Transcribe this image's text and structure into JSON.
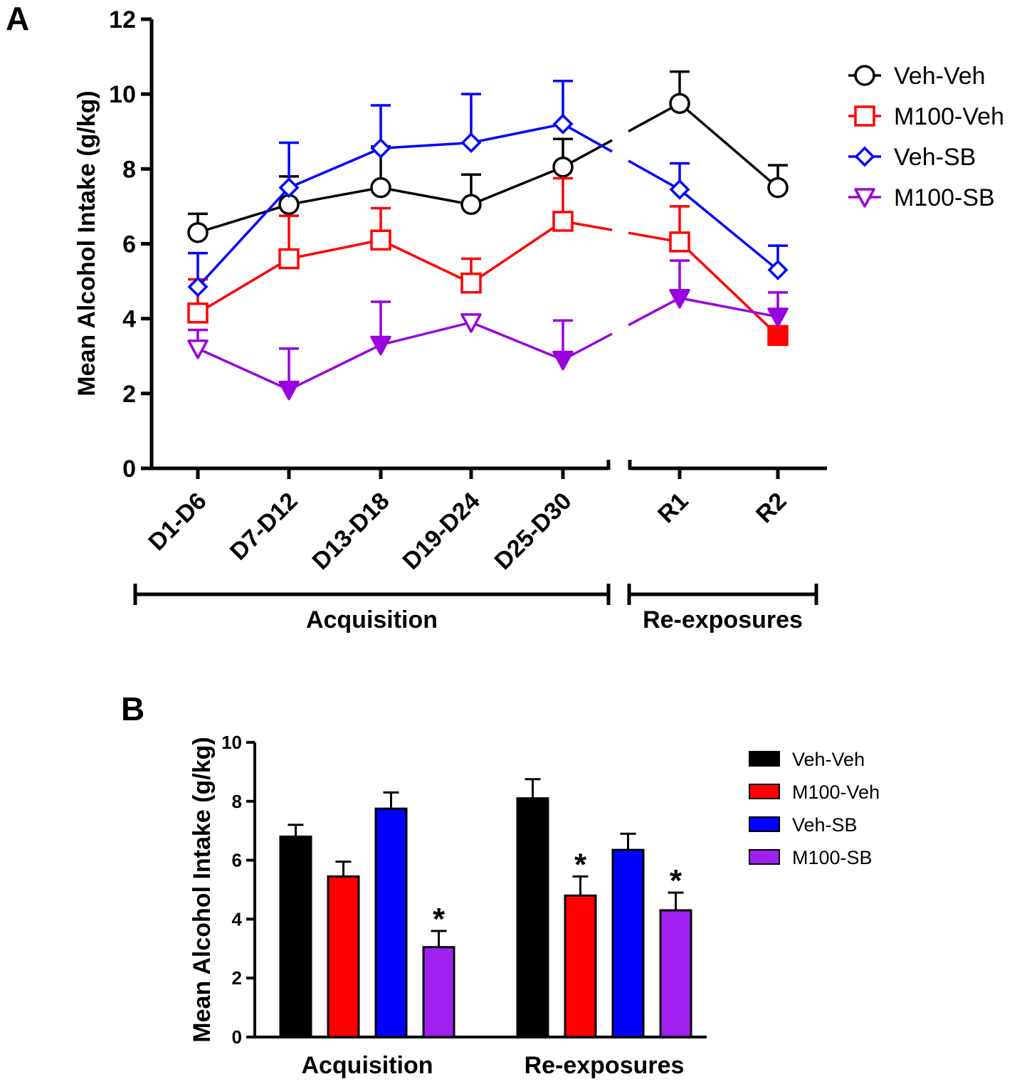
{
  "panels": {
    "a_label": "A",
    "b_label": "B"
  },
  "chart_data": [
    {
      "type": "line",
      "panel": "A",
      "ylabel": "Mean Alcohol Intake (g/kg)",
      "ylim": [
        0,
        12
      ],
      "yticks": [
        0,
        2,
        4,
        6,
        8,
        10,
        12
      ],
      "categories": [
        "D1-D6",
        "D7-D12",
        "D13-D18",
        "D19-D24",
        "D25-D30",
        "R1",
        "R2"
      ],
      "groups": [
        {
          "label": "Acquisition",
          "span": "D1-D6 to D25-D30"
        },
        {
          "label": "Re-exposures",
          "span": "R1 to R2"
        }
      ],
      "axis_break": "between D25-D30 and R1",
      "series": [
        {
          "name": "Veh-Veh",
          "color": "#000000",
          "marker": "circle",
          "values": [
            6.3,
            7.05,
            7.5,
            7.05,
            8.05,
            9.75,
            7.5
          ],
          "errors": [
            0.5,
            0.75,
            1.1,
            0.8,
            0.75,
            0.85,
            0.6
          ],
          "filled": [
            false,
            false,
            false,
            false,
            false,
            false,
            false
          ]
        },
        {
          "name": "M100-Veh",
          "color": "#ff0000",
          "marker": "square",
          "values": [
            4.15,
            5.6,
            6.1,
            4.95,
            6.6,
            6.05,
            3.55
          ],
          "errors": [
            0.9,
            1.15,
            0.85,
            0.65,
            1.15,
            0.95,
            0.0
          ],
          "filled": [
            false,
            false,
            false,
            false,
            false,
            false,
            true
          ]
        },
        {
          "name": "Veh-SB",
          "color": "#0000ff",
          "marker": "diamond",
          "values": [
            4.85,
            7.5,
            8.55,
            8.7,
            9.2,
            7.45,
            5.3
          ],
          "errors": [
            0.9,
            1.2,
            1.15,
            1.3,
            1.15,
            0.7,
            0.65
          ],
          "filled": [
            false,
            false,
            false,
            false,
            false,
            false,
            false
          ]
        },
        {
          "name": "M100-SB",
          "color": "#9900dd",
          "marker": "triangle-down",
          "values": [
            3.2,
            2.1,
            3.3,
            3.9,
            2.9,
            4.55,
            4.05
          ],
          "errors": [
            0.5,
            1.1,
            1.15,
            0.0,
            1.05,
            1.0,
            0.65
          ],
          "filled": [
            false,
            true,
            true,
            false,
            true,
            true,
            true
          ]
        }
      ]
    },
    {
      "type": "bar",
      "panel": "B",
      "ylabel": "Mean Alcohol  Intake (g/kg)",
      "ylim": [
        0,
        10
      ],
      "yticks": [
        0,
        2,
        4,
        6,
        8,
        10
      ],
      "categories": [
        "Acquisition",
        "Re-exposures"
      ],
      "significance_marker": "*",
      "series": [
        {
          "name": "Veh-Veh",
          "color": "#000000",
          "values": [
            6.8,
            8.1
          ],
          "errors": [
            0.4,
            0.65
          ],
          "significant": [
            false,
            false
          ]
        },
        {
          "name": "M100-Veh",
          "color": "#ff0000",
          "values": [
            5.45,
            4.8
          ],
          "errors": [
            0.5,
            0.65
          ],
          "significant": [
            false,
            true
          ]
        },
        {
          "name": "Veh-SB",
          "color": "#0000ff",
          "values": [
            7.75,
            6.35
          ],
          "errors": [
            0.55,
            0.55
          ],
          "significant": [
            false,
            false
          ]
        },
        {
          "name": "M100-SB",
          "color": "#a020f0",
          "values": [
            3.05,
            4.3
          ],
          "errors": [
            0.55,
            0.6
          ],
          "significant": [
            true,
            true
          ]
        }
      ]
    }
  ]
}
